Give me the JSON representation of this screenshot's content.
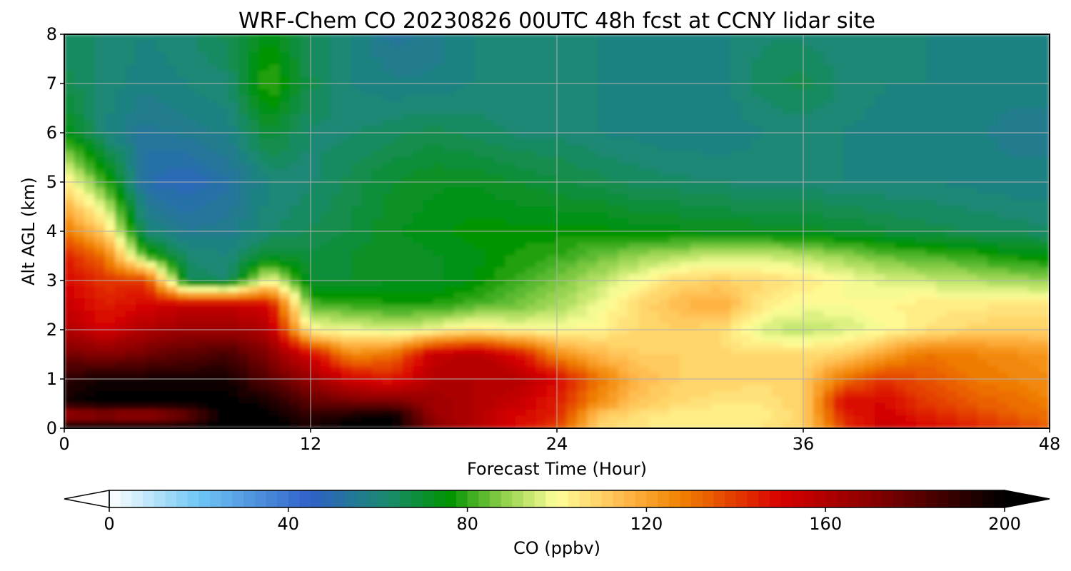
{
  "chart_data": {
    "type": "heatmap",
    "title": "WRF-Chem CO  20230826 00UTC 48h fcst at CCNY lidar site",
    "xlabel": "Forecast Time (Hour)",
    "ylabel": "Alt AGL (km)",
    "xlim": [
      0,
      48
    ],
    "ylim": [
      0,
      8
    ],
    "xticks": [
      "0",
      "12",
      "24",
      "36",
      "48"
    ],
    "yticks": [
      "0",
      "1",
      "2",
      "3",
      "4",
      "5",
      "6",
      "7",
      "8"
    ],
    "grid": true,
    "z_hours": [
      0,
      2,
      4,
      6,
      8,
      10,
      12,
      14,
      16,
      18,
      20,
      22,
      24,
      26,
      28,
      30,
      32,
      34,
      36,
      38,
      40,
      42,
      44,
      46,
      48
    ],
    "z_alt_km": [
      0,
      0.25,
      0.5,
      1,
      1.5,
      2,
      2.5,
      3,
      3.5,
      4,
      5,
      6,
      7,
      8
    ],
    "z_co_ppbv": [
      [
        200,
        200,
        200,
        200,
        200,
        200,
        195,
        200,
        200,
        170,
        160,
        150,
        140,
        110,
        105,
        105,
        105,
        105,
        110,
        140,
        155,
        150,
        145,
        140,
        135
      ],
      [
        160,
        165,
        160,
        175,
        200,
        200,
        190,
        195,
        200,
        165,
        160,
        150,
        145,
        112,
        106,
        103,
        102,
        103,
        108,
        145,
        152,
        145,
        140,
        135,
        130
      ],
      [
        195,
        200,
        200,
        200,
        200,
        195,
        180,
        175,
        175,
        165,
        160,
        155,
        145,
        125,
        112,
        108,
        105,
        105,
        110,
        150,
        150,
        140,
        135,
        132,
        128
      ],
      [
        190,
        195,
        195,
        195,
        195,
        180,
        165,
        150,
        145,
        160,
        160,
        160,
        150,
        130,
        115,
        110,
        110,
        108,
        110,
        130,
        140,
        135,
        130,
        128,
        125
      ],
      [
        175,
        170,
        175,
        180,
        185,
        170,
        150,
        125,
        130,
        155,
        160,
        150,
        125,
        115,
        110,
        110,
        108,
        108,
        108,
        110,
        120,
        130,
        128,
        125,
        122
      ],
      [
        160,
        150,
        160,
        165,
        165,
        160,
        100,
        98,
        95,
        98,
        105,
        100,
        100,
        102,
        108,
        110,
        108,
        95,
        92,
        95,
        100,
        105,
        108,
        110,
        110
      ],
      [
        155,
        145,
        150,
        155,
        155,
        150,
        82,
        80,
        78,
        78,
        82,
        85,
        90,
        98,
        108,
        115,
        118,
        105,
        100,
        100,
        102,
        104,
        104,
        105,
        105
      ],
      [
        150,
        140,
        140,
        65,
        62,
        100,
        70,
        70,
        72,
        72,
        75,
        80,
        85,
        92,
        100,
        108,
        110,
        108,
        105,
        100,
        96,
        94,
        92,
        90,
        88
      ],
      [
        145,
        130,
        80,
        62,
        60,
        70,
        68,
        70,
        72,
        72,
        74,
        78,
        80,
        84,
        88,
        92,
        94,
        94,
        92,
        88,
        84,
        82,
        80,
        76,
        74
      ],
      [
        130,
        110,
        60,
        55,
        56,
        62,
        65,
        68,
        72,
        74,
        76,
        76,
        76,
        76,
        74,
        73,
        72,
        72,
        71,
        70,
        68,
        66,
        65,
        64,
        63
      ],
      [
        105,
        80,
        50,
        48,
        52,
        60,
        62,
        66,
        70,
        72,
        72,
        70,
        68,
        66,
        64,
        63,
        62,
        61,
        61,
        60,
        60,
        60,
        59,
        58,
        58
      ],
      [
        75,
        60,
        54,
        56,
        58,
        70,
        62,
        62,
        64,
        66,
        64,
        62,
        62,
        60,
        59,
        58,
        58,
        60,
        61,
        60,
        59,
        58,
        58,
        57,
        57
      ],
      [
        66,
        62,
        58,
        60,
        62,
        82,
        66,
        60,
        58,
        58,
        60,
        62,
        62,
        60,
        58,
        58,
        59,
        64,
        66,
        62,
        60,
        60,
        59,
        58,
        58
      ],
      [
        64,
        62,
        60,
        62,
        66,
        74,
        64,
        60,
        54,
        56,
        60,
        62,
        62,
        60,
        58,
        58,
        59,
        62,
        62,
        60,
        60,
        60,
        59,
        58,
        58
      ]
    ],
    "colorbar": {
      "label": "CO  (ppbv)",
      "min": 0,
      "max": 200,
      "ticks": [
        "0",
        "40",
        "80",
        "120",
        "160",
        "200"
      ],
      "extend": "both",
      "levels": 80
    },
    "colormap": [
      {
        "v": 0,
        "c": "#ffffff"
      },
      {
        "v": 20,
        "c": "#6ec6f5"
      },
      {
        "v": 45,
        "c": "#3060c8"
      },
      {
        "v": 62,
        "c": "#1a8a70"
      },
      {
        "v": 76,
        "c": "#009300"
      },
      {
        "v": 88,
        "c": "#8fd04a"
      },
      {
        "v": 100,
        "c": "#ffff9a"
      },
      {
        "v": 115,
        "c": "#ffb84a"
      },
      {
        "v": 128,
        "c": "#f08000"
      },
      {
        "v": 150,
        "c": "#d80000"
      },
      {
        "v": 170,
        "c": "#8a0000"
      },
      {
        "v": 200,
        "c": "#000000"
      }
    ]
  }
}
